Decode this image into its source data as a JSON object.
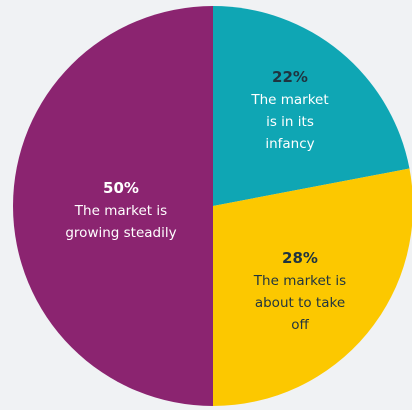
{
  "chart_data": {
    "type": "pie",
    "slices": [
      {
        "name": "The market is in its infancy",
        "value": 22,
        "pct_label": "22%",
        "text_lines": [
          "The market",
          "is in its",
          "infancy"
        ],
        "color": "#0fa6b4",
        "text_color": "#ffffff",
        "pct_color": "#1f3440"
      },
      {
        "name": "The market is about to take off",
        "value": 28,
        "pct_label": "28%",
        "text_lines": [
          "The market is",
          "about to take",
          "off"
        ],
        "color": "#fcc800",
        "text_color": "#1f3440",
        "pct_color": "#1f3440"
      },
      {
        "name": "The market is growing steadily",
        "value": 50,
        "pct_label": "50%",
        "text_lines": [
          "The market is",
          "growing steadily"
        ],
        "color": "#8b2470",
        "text_color": "#ffffff",
        "pct_color": "#ffffff"
      }
    ]
  }
}
